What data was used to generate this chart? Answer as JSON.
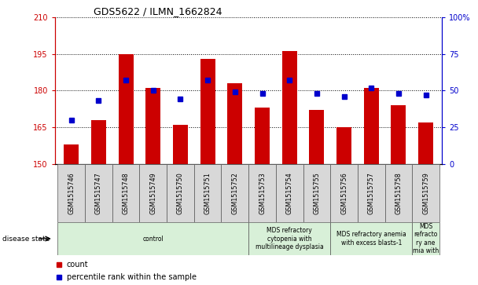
{
  "title": "GDS5622 / ILMN_1662824",
  "samples": [
    "GSM1515746",
    "GSM1515747",
    "GSM1515748",
    "GSM1515749",
    "GSM1515750",
    "GSM1515751",
    "GSM1515752",
    "GSM1515753",
    "GSM1515754",
    "GSM1515755",
    "GSM1515756",
    "GSM1515757",
    "GSM1515758",
    "GSM1515759"
  ],
  "counts": [
    158,
    168,
    195,
    181,
    166,
    193,
    183,
    173,
    196,
    172,
    165,
    181,
    174,
    167
  ],
  "percentiles": [
    30,
    43,
    57,
    50,
    44,
    57,
    49,
    48,
    57,
    48,
    46,
    52,
    48,
    47
  ],
  "ylim_left": [
    150,
    210
  ],
  "ylim_right": [
    0,
    100
  ],
  "yticks_left": [
    150,
    165,
    180,
    195,
    210
  ],
  "yticks_right": [
    0,
    25,
    50,
    75,
    100
  ],
  "yticklabels_right": [
    "0",
    "25",
    "50",
    "75",
    "100%"
  ],
  "bar_color": "#cc0000",
  "dot_color": "#0000cc",
  "bar_bottom": 150,
  "disease_groups": [
    {
      "label": "control",
      "start": 0,
      "end": 7,
      "color": "#d8f0d8"
    },
    {
      "label": "MDS refractory\ncytopenia with\nmultilineage dysplasia",
      "start": 7,
      "end": 10,
      "color": "#d8f0d8"
    },
    {
      "label": "MDS refractory anemia\nwith excess blasts-1",
      "start": 10,
      "end": 13,
      "color": "#d8f0d8"
    },
    {
      "label": "MDS\nrefracto\nry ane\nmia with",
      "start": 13,
      "end": 14,
      "color": "#d8f0d8"
    }
  ],
  "legend_count_label": "count",
  "legend_percentile_label": "percentile rank within the sample"
}
